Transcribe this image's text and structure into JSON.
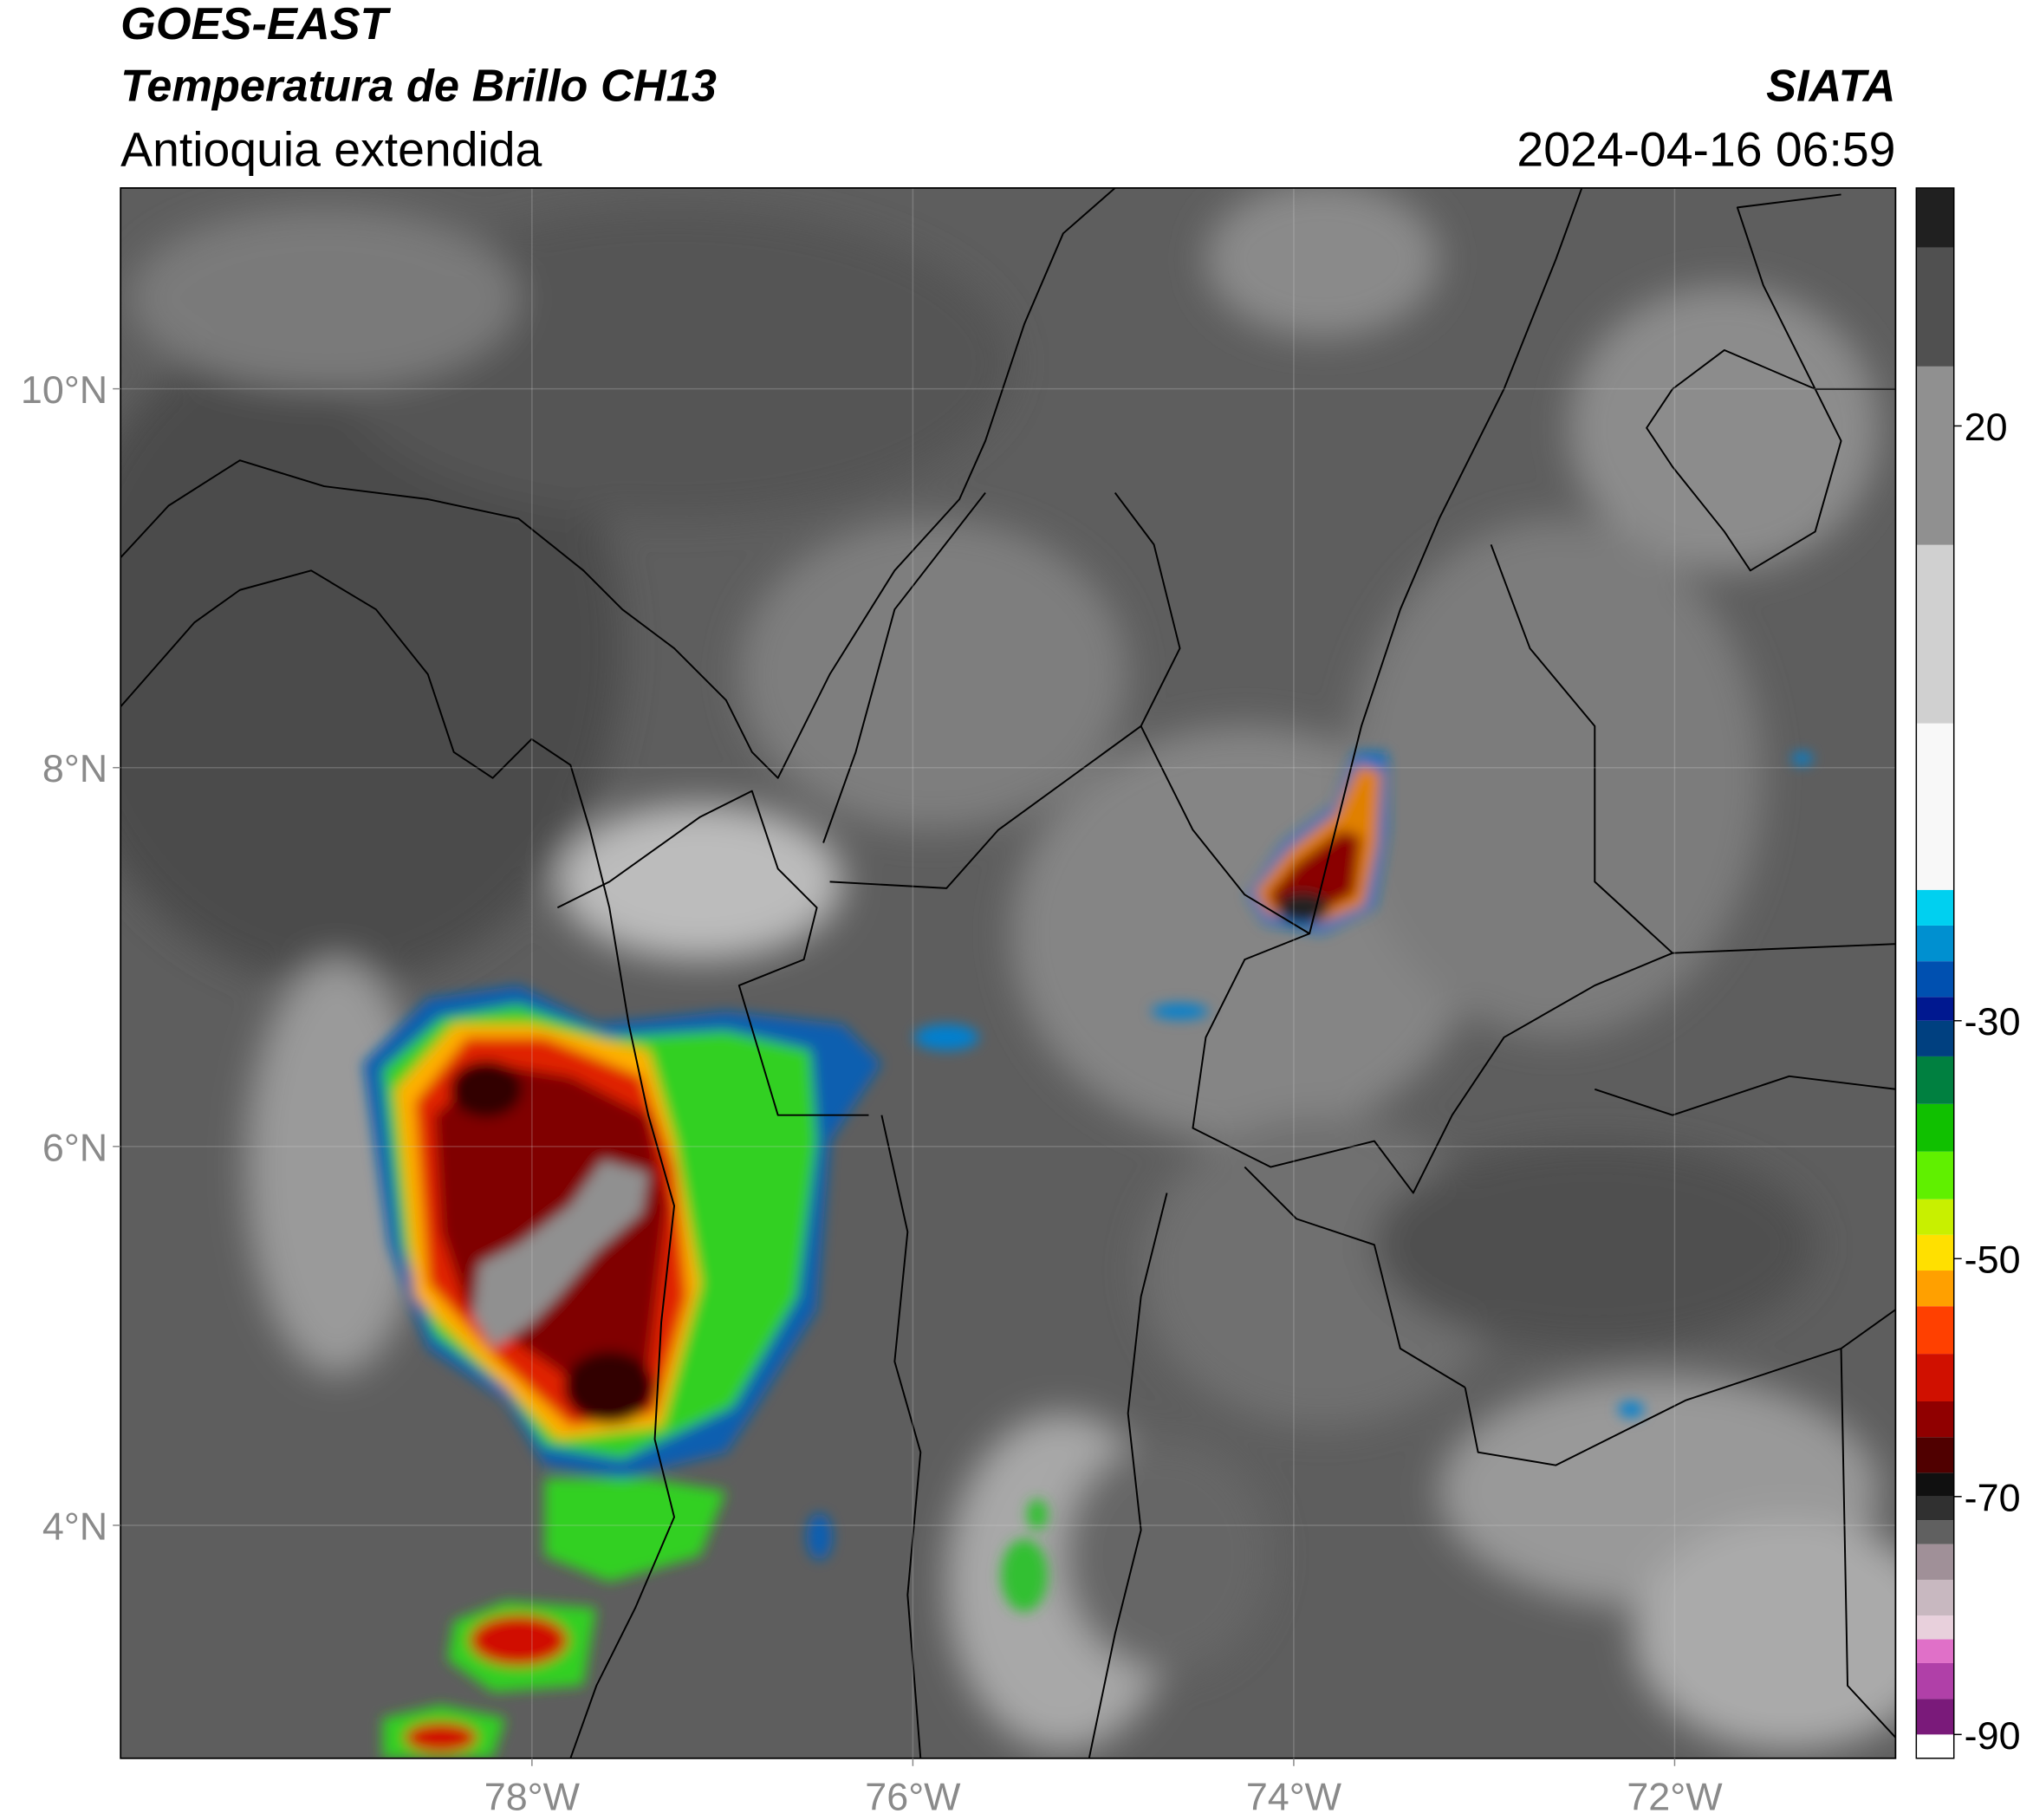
{
  "header": {
    "line1": "GOES-EAST",
    "line2": "Temperatura de Brillo CH13",
    "subtitle": "Antioquia extendida",
    "source": "SIATA",
    "datetime": "2024-04-16 06:59"
  },
  "map": {
    "lon_range": [
      -80.16,
      -70.84
    ],
    "lat_range": [
      2.77,
      11.06
    ],
    "lat_ticks": [
      {
        "value": 10,
        "label": "10°N"
      },
      {
        "value": 8,
        "label": "8°N"
      },
      {
        "value": 6,
        "label": "6°N"
      },
      {
        "value": 4,
        "label": "4°N"
      }
    ],
    "lon_ticks": [
      {
        "value": -78,
        "label": "78°W"
      },
      {
        "value": -76,
        "label": "76°W"
      },
      {
        "value": -74,
        "label": "74°W"
      },
      {
        "value": -72,
        "label": "72°W"
      }
    ],
    "grid": true
  },
  "colorbar": {
    "range": [
      -92,
      40
    ],
    "ticks": [
      20,
      -30,
      -50,
      -70,
      -90
    ],
    "stops": [
      {
        "value": -92,
        "color": "#ffffff"
      },
      {
        "value": -90,
        "color": "#7a1a7a"
      },
      {
        "value": -87,
        "color": "#b040a8"
      },
      {
        "value": -84,
        "color": "#e070c8"
      },
      {
        "value": -82,
        "color": "#e8d0dc"
      },
      {
        "value": -80,
        "color": "#c8b8c0"
      },
      {
        "value": -77,
        "color": "#a09098"
      },
      {
        "value": -74,
        "color": "#606060"
      },
      {
        "value": -72,
        "color": "#303030"
      },
      {
        "value": -70,
        "color": "#101010"
      },
      {
        "value": -68,
        "color": "#500000"
      },
      {
        "value": -65,
        "color": "#900000"
      },
      {
        "value": -62,
        "color": "#d01000"
      },
      {
        "value": -58,
        "color": "#ff4000"
      },
      {
        "value": -54,
        "color": "#ffa000"
      },
      {
        "value": -51,
        "color": "#ffe000"
      },
      {
        "value": -48,
        "color": "#c8f000"
      },
      {
        "value": -45,
        "color": "#60f000"
      },
      {
        "value": -41,
        "color": "#10c000"
      },
      {
        "value": -37,
        "color": "#008040"
      },
      {
        "value": -33,
        "color": "#004080"
      },
      {
        "value": -30,
        "color": "#001890"
      },
      {
        "value": -28,
        "color": "#0050b0"
      },
      {
        "value": -25,
        "color": "#0090d0"
      },
      {
        "value": -22,
        "color": "#00d0f0"
      },
      {
        "value": -19,
        "color": "#f8f8f8"
      },
      {
        "value": -5,
        "color": "#d0d0d0"
      },
      {
        "value": 10,
        "color": "#909090"
      },
      {
        "value": 25,
        "color": "#505050"
      },
      {
        "value": 35,
        "color": "#202020"
      }
    ]
  }
}
